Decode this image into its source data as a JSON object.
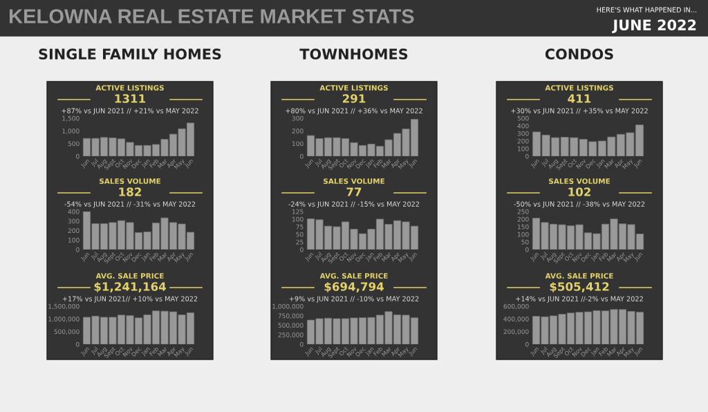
{
  "chart_data": [
    {
      "type": "other",
      "title": "KELOWNA REAL ESTATE MARKET STATS",
      "annotations": [
        "HERE'S WHAT HAPPENED IN...",
        "JUNE 2022",
        "SINGLE FAMILY HOMES",
        "TOWNHOMES",
        "CONDOS"
      ]
    },
    {
      "type": "bar",
      "title": "ACTIVE LISTINGS",
      "subtitle": "1311",
      "annotations": [
        "+87% vs JUN 2021 // +21% vs MAY 2022"
      ],
      "categories": [
        "Jun",
        "Jul",
        "Aug",
        "Sept",
        "Oct",
        "Nov",
        "Dec",
        "Jan",
        "Feb",
        "Mar",
        "Apr",
        "May",
        "Jun"
      ],
      "values": [
        703,
        703,
        740,
        722,
        685,
        546,
        426,
        426,
        463,
        667,
        870,
        1083,
        1311
      ],
      "color": "#999999",
      "ylim": [
        0,
        1500
      ],
      "yticks": [
        0,
        500,
        {
          "value": 1000,
          "label": "1,000"
        },
        {
          "value": 1500,
          "label": "1,500"
        }
      ]
    },
    {
      "type": "bar",
      "title": "ACTIVE LISTINGS",
      "subtitle": "291",
      "annotations": [
        "+80% vs JUN 2021 // +36% vs MAY 2022"
      ],
      "categories": [
        "Jun",
        "Jul",
        "Aug",
        "Sept",
        "Oct",
        "Nov",
        "Dec",
        "Jan",
        "Feb",
        "Mar",
        "Apr",
        "May",
        "Jun"
      ],
      "values": [
        163,
        139,
        146,
        146,
        139,
        107,
        85,
        96,
        78,
        130,
        180,
        215,
        291
      ],
      "color": "#999999",
      "ylim": [
        0,
        300
      ],
      "yticks": [
        0,
        100,
        200,
        300
      ]
    },
    {
      "type": "bar",
      "title": "ACTIVE LISTINGS",
      "subtitle": "411",
      "annotations": [
        "+30% vs JUN 2021 // +35% vs MAY 2022"
      ],
      "categories": [
        "Jun",
        "Jul",
        "Aug",
        "Sept",
        "Oct",
        "Nov",
        "Dec",
        "Jan",
        "Mar",
        "Apr",
        "May",
        "Jun"
      ],
      "values": [
        319,
        278,
        244,
        250,
        244,
        222,
        191,
        200,
        253,
        288,
        309,
        411
      ],
      "color": "#999999",
      "ylim": [
        0,
        500
      ],
      "yticks": [
        0,
        100,
        200,
        300,
        400,
        500
      ]
    },
    {
      "type": "bar",
      "title": "SALES VOLUME",
      "subtitle": "182",
      "annotations": [
        "-54% vs JUN 2021 // -31% vs MAY 2022"
      ],
      "categories": [
        "Jun",
        "Jul",
        "Aug",
        "Sept",
        "Oct",
        "Nov",
        "Dec",
        "Jan",
        "Feb",
        "Mar",
        "Apr",
        "May",
        "Jun"
      ],
      "values": [
        400,
        272,
        272,
        284,
        304,
        284,
        178,
        185,
        279,
        333,
        284,
        269,
        182
      ],
      "color": "#999999",
      "ylim": [
        0,
        400
      ],
      "yticks": [
        0,
        100,
        200,
        300,
        400
      ]
    },
    {
      "type": "bar",
      "title": "SALES VOLUME",
      "subtitle": "77",
      "annotations": [
        "-24% vs JUN 2021 // -15% vs MAY 2022"
      ],
      "categories": [
        "Jun",
        "Jul",
        "Aug",
        "Sept",
        "Oct",
        "Nov",
        "Dec",
        "Jan",
        "Feb",
        "Mar",
        "Apr",
        "May",
        "Jun"
      ],
      "values": [
        101,
        98,
        77,
        75,
        91,
        67,
        52,
        67,
        100,
        83,
        95,
        91,
        77
      ],
      "color": "#999999",
      "ylim": [
        0,
        125
      ],
      "yticks": [
        0,
        25,
        50,
        75,
        100,
        125
      ]
    },
    {
      "type": "bar",
      "title": "SALES VOLUME",
      "subtitle": "102",
      "annotations": [
        "-50% vs JUN 2021 // -38% vs MAY 2022"
      ],
      "categories": [
        "Jun",
        "Jul",
        "Aug",
        "Sept",
        "Oct",
        "Nov",
        "Dec",
        "Jan",
        "Feb",
        "Mar",
        "Apr",
        "May",
        "Jun"
      ],
      "values": [
        206,
        178,
        167,
        163,
        156,
        163,
        110,
        104,
        167,
        201,
        169,
        164,
        102
      ],
      "color": "#999999",
      "ylim": [
        0,
        250
      ],
      "yticks": [
        0,
        50,
        100,
        150,
        200,
        250
      ]
    },
    {
      "type": "bar",
      "title": "AVG. SALE PRICE",
      "subtitle": "$1,241,164",
      "annotations": [
        "+17% vs JUN 2021// +10% vs MAY 2022"
      ],
      "categories": [
        "Jun",
        "Jul",
        "Aug",
        "Sept",
        "Oct",
        "Nov",
        "Dec",
        "Jan",
        "Feb",
        "Mar",
        "Apr",
        "May",
        "Jun"
      ],
      "values": [
        1065000,
        1110000,
        1065000,
        1065000,
        1150000,
        1130000,
        1040000,
        1160000,
        1315000,
        1305000,
        1280000,
        1160000,
        1241164
      ],
      "color": "#999999",
      "ylim": [
        0,
        1500000
      ],
      "yticks": [
        0,
        {
          "value": 500000,
          "label": "500,000"
        },
        {
          "value": 1000000,
          "label": "1,000,000"
        },
        {
          "value": 1500000,
          "label": "1,500,000"
        }
      ]
    },
    {
      "type": "bar",
      "title": "AVG. SALE PRICE",
      "subtitle": "$694,794",
      "annotations": [
        "+9% vs JUN 2021 // -10% vs MAY 2022"
      ],
      "categories": [
        "Jun",
        "Jul",
        "Aug",
        "Sept",
        "Oct",
        "Nov",
        "Dec",
        "Jan",
        "Feb",
        "Mar",
        "Apr",
        "May",
        "Jun"
      ],
      "values": [
        636000,
        673000,
        685000,
        673000,
        673000,
        691000,
        697000,
        704000,
        765000,
        858000,
        772000,
        765000,
        694794
      ],
      "color": "#999999",
      "ylim": [
        0,
        1000000
      ],
      "yticks": [
        0,
        {
          "value": 250000,
          "label": "250,000"
        },
        {
          "value": 500000,
          "label": "500,000"
        },
        {
          "value": 750000,
          "label": "750,000"
        },
        {
          "value": 1000000,
          "label": "1,000,000"
        }
      ]
    },
    {
      "type": "bar",
      "title": "AVG. SALE PRICE",
      "subtitle": "$505,412",
      "annotations": [
        "+14% vs JUN 2021 //-2% vs MAY 2022"
      ],
      "categories": [
        "Jun",
        "Jul",
        "Aug",
        "Sept",
        "Oct",
        "Nov",
        "Dec",
        "Jan",
        "Feb",
        "Mar",
        "Apr",
        "May",
        "Jun"
      ],
      "values": [
        441000,
        433000,
        448000,
        474000,
        493000,
        504000,
        511000,
        530000,
        526000,
        548000,
        548000,
        519000,
        505412
      ],
      "color": "#999999",
      "ylim": [
        0,
        600000
      ],
      "yticks": [
        0,
        {
          "value": 200000,
          "label": "200,000"
        },
        {
          "value": 400000,
          "label": "400,000"
        },
        {
          "value": 600000,
          "label": "600,000"
        }
      ]
    }
  ]
}
